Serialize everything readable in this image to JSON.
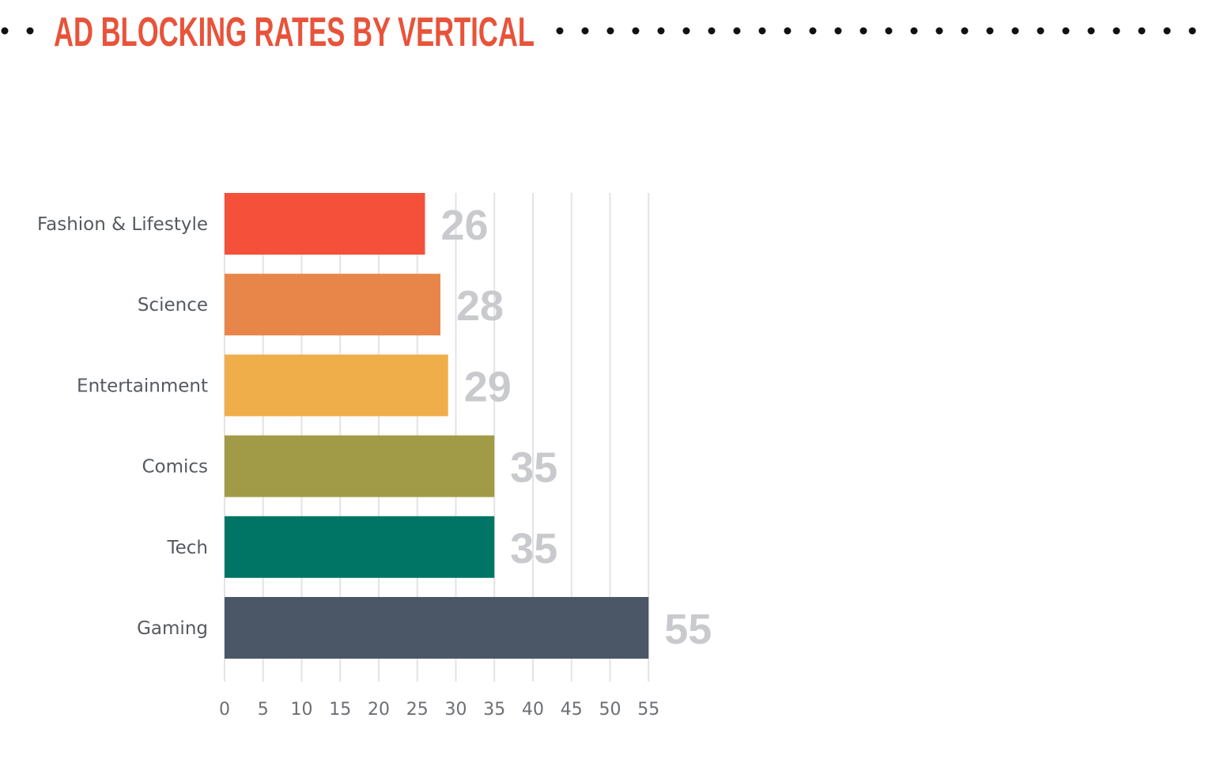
{
  "chart_data": {
    "type": "bar",
    "orientation": "horizontal",
    "title": "AD BLOCKING RATES BY VERTICAL",
    "categories": [
      "Fashion & Lifestyle",
      "Science",
      "Entertainment",
      "Comics",
      "Tech",
      "Gaming"
    ],
    "values": [
      26,
      28,
      29,
      35,
      35,
      55
    ],
    "value_labels": [
      "26",
      "28",
      "29",
      "35",
      "35",
      "55"
    ],
    "bar_colors": [
      "#f4503a",
      "#e8864a",
      "#f0ae4b",
      "#a19b48",
      "#007565",
      "#4b5767"
    ],
    "xlim": [
      0,
      55
    ],
    "xticks": [
      0,
      5,
      10,
      15,
      20,
      25,
      30,
      35,
      40,
      45,
      50,
      55
    ],
    "xtick_labels": [
      "0",
      "5",
      "10",
      "15",
      "20",
      "25",
      "30",
      "35",
      "40",
      "45",
      "50",
      "55"
    ],
    "grid": true,
    "xlabel": "",
    "ylabel": ""
  },
  "colors": {
    "title": "#e8533a",
    "dots": "#111111",
    "grid": "#e3e3e7",
    "value_label": "#c9cacd",
    "category_label": "#555a60",
    "tick_label": "#6b6f74"
  }
}
